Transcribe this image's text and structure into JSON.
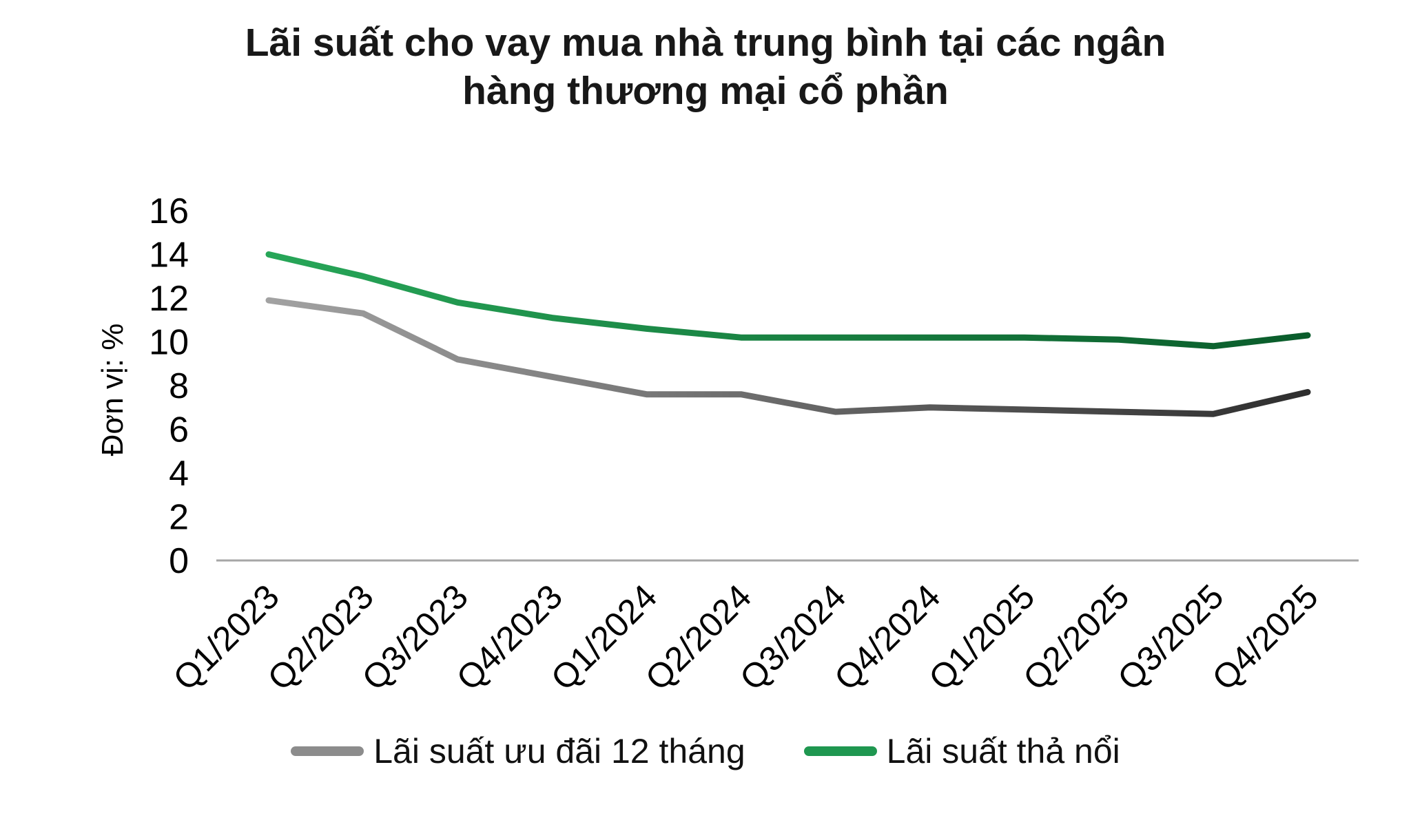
{
  "chart_data": {
    "type": "line",
    "title": "Lãi suất cho vay mua nhà trung bình tại các ngân hàng thương mại cổ phần",
    "ylabel": "Đơn vị: %",
    "xlabel": "",
    "categories": [
      "Q1/2023",
      "Q2/2023",
      "Q3/2023",
      "Q4/2023",
      "Q1/2024",
      "Q2/2024",
      "Q3/2024",
      "Q4/2024",
      "Q1/2025",
      "Q2/2025",
      "Q3/2025",
      "Q4/2025"
    ],
    "series": [
      {
        "name": "Lãi suất ưu đãi 12 tháng",
        "color": "#8c8c8c",
        "color_start": "#a2a2a2",
        "color_end": "#2e2e2e",
        "values": [
          11.9,
          11.3,
          9.2,
          8.4,
          7.6,
          7.6,
          6.8,
          7.0,
          6.9,
          6.8,
          6.7,
          7.7
        ]
      },
      {
        "name": "Lãi suất thả nổi",
        "color": "#1f9750",
        "color_start": "#27a658",
        "color_end": "#0a5c2b",
        "values": [
          14.0,
          13.0,
          11.8,
          11.1,
          10.6,
          10.2,
          10.2,
          10.2,
          10.2,
          10.1,
          9.8,
          10.3
        ]
      }
    ],
    "ylim": [
      0,
      16
    ],
    "yticks": [
      0,
      2,
      4,
      6,
      8,
      10,
      12,
      14,
      16
    ],
    "grid": false,
    "legend_position": "bottom",
    "axis_color": "#a6a6a6",
    "tick_label_color": "#000000"
  }
}
